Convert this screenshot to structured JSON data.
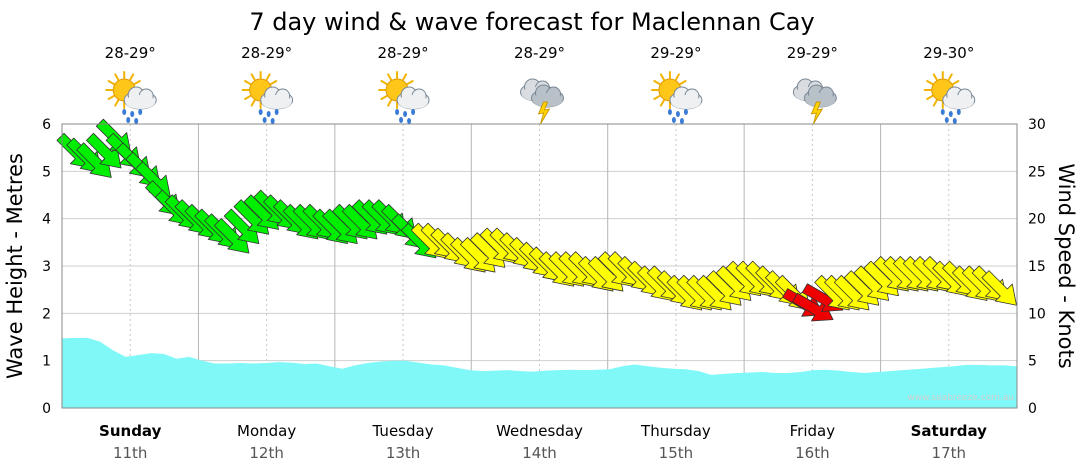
{
  "title": "7 day wind & wave forecast for Maclennan Cay",
  "credit": "www.seabreeze.com.au",
  "days": [
    {
      "name": "Sunday",
      "date": "11th",
      "bold": true,
      "temp": "28-29°",
      "icon": "sun-cloud-rain-icon"
    },
    {
      "name": "Monday",
      "date": "12th",
      "bold": false,
      "temp": "28-29°",
      "icon": "sun-cloud-rain-icon"
    },
    {
      "name": "Tuesday",
      "date": "13th",
      "bold": false,
      "temp": "28-29°",
      "icon": "sun-cloud-rain-icon"
    },
    {
      "name": "Wednesday",
      "date": "14th",
      "bold": false,
      "temp": "28-29°",
      "icon": "storm-cloud-icon"
    },
    {
      "name": "Thursday",
      "date": "15th",
      "bold": false,
      "temp": "29-29°",
      "icon": "sun-cloud-rain-icon"
    },
    {
      "name": "Friday",
      "date": "16th",
      "bold": false,
      "temp": "29-29°",
      "icon": "storm-cloud-icon"
    },
    {
      "name": "Saturday",
      "date": "17th",
      "bold": true,
      "temp": "29-30°",
      "icon": "sun-cloud-rain-icon"
    }
  ],
  "chart_data": {
    "type": "area",
    "ylabel_left": "Wave Height - Metres",
    "ylabel_right": "Wind Speed - Knots",
    "ylim_left": [
      0,
      6
    ],
    "ylim_right": [
      0,
      30
    ],
    "yticks_left": [
      "0",
      "1",
      "2",
      "3",
      "4",
      "5",
      "6"
    ],
    "yticks_right": [
      "0",
      "5",
      "10",
      "15",
      "20",
      "25",
      "30"
    ],
    "grid": true,
    "wave_color": "#80f8f8",
    "wind_colors": {
      "green": "#00ee00",
      "yellow": "#ffff00",
      "red": "#ee0000"
    },
    "wave_height_m": [
      1.47,
      1.48,
      1.48,
      1.4,
      1.22,
      1.08,
      1.12,
      1.16,
      1.14,
      1.04,
      1.08,
      1.0,
      0.94,
      0.94,
      0.95,
      0.94,
      0.95,
      0.97,
      0.96,
      0.93,
      0.94,
      0.88,
      0.83,
      0.9,
      0.95,
      0.98,
      1.0,
      1.0,
      0.96,
      0.92,
      0.9,
      0.85,
      0.8,
      0.78,
      0.79,
      0.8,
      0.78,
      0.77,
      0.79,
      0.8,
      0.81,
      0.8,
      0.81,
      0.82,
      0.88,
      0.92,
      0.88,
      0.85,
      0.83,
      0.82,
      0.78,
      0.7,
      0.72,
      0.74,
      0.75,
      0.76,
      0.74,
      0.74,
      0.76,
      0.8,
      0.81,
      0.79,
      0.76,
      0.74,
      0.76,
      0.78,
      0.8,
      0.82,
      0.84,
      0.86,
      0.88,
      0.91,
      0.91,
      0.9,
      0.9,
      0.88
    ],
    "wind_speed_kn": [
      27,
      26.5,
      26,
      27,
      28.5,
      27,
      26,
      25,
      24,
      22,
      21,
      20.5,
      20,
      19.5,
      19,
      18.5,
      18,
      19,
      20,
      20.5,
      21,
      20.5,
      20,
      19.5,
      19.5,
      19.5,
      19,
      19,
      19.5,
      19.5,
      20,
      20,
      20,
      19.5,
      18.5,
      17.5,
      17.5,
      17.5,
      17,
      16.5,
      16,
      16,
      16.5,
      17,
      17,
      16.5,
      16,
      15.5,
      15,
      14.5,
      14.5,
      14.5,
      14.5,
      14,
      14,
      14.5,
      14.5,
      14,
      13.5,
      13,
      13,
      12.5,
      12,
      12,
      12,
      12,
      12.5,
      13,
      13.5,
      13.5,
      13.5,
      13,
      12.5,
      12,
      11,
      10.5,
      11.5,
      12,
      12,
      12,
      12.5,
      13,
      13.5,
      14,
      14,
      14,
      14,
      14,
      14,
      13.5,
      13.5,
      13,
      13,
      13,
      12.5
    ],
    "wind_color_key": [
      "g",
      "g",
      "g",
      "g",
      "g",
      "g",
      "g",
      "g",
      "g",
      "g",
      "g",
      "g",
      "g",
      "g",
      "g",
      "g",
      "g",
      "g",
      "g",
      "g",
      "g",
      "g",
      "g",
      "g",
      "g",
      "g",
      "g",
      "g",
      "g",
      "g",
      "g",
      "g",
      "g",
      "g",
      "g",
      "g",
      "y",
      "y",
      "y",
      "y",
      "y",
      "y",
      "y",
      "y",
      "y",
      "y",
      "y",
      "y",
      "y",
      "y",
      "y",
      "y",
      "y",
      "y",
      "y",
      "y",
      "y",
      "y",
      "y",
      "y",
      "y",
      "y",
      "y",
      "y",
      "y",
      "y",
      "y",
      "y",
      "y",
      "y",
      "y",
      "y",
      "y",
      "y",
      "r",
      "r",
      "r",
      "y",
      "y",
      "y",
      "y",
      "y",
      "y",
      "y",
      "y",
      "y",
      "y",
      "y",
      "y",
      "y",
      "y",
      "y",
      "y",
      "y",
      "y"
    ]
  }
}
